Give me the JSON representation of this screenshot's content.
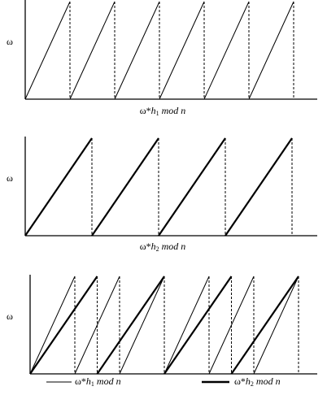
{
  "panels": [
    {
      "y_label": "ω",
      "x_label": {
        "head": "ω*",
        "var": "h",
        "sub": "1",
        "tail": "mod n"
      }
    },
    {
      "y_label": "ω",
      "x_label": {
        "head": "ω*",
        "var": "h",
        "sub": "2",
        "tail": "mod n"
      }
    },
    {
      "y_label": "ω"
    }
  ],
  "legend": [
    {
      "head": "ω*",
      "var": "h",
      "sub": "1",
      "tail": "mod n"
    },
    {
      "head": "ω*",
      "var": "h",
      "sub": "2",
      "tail": "mod n"
    }
  ]
}
